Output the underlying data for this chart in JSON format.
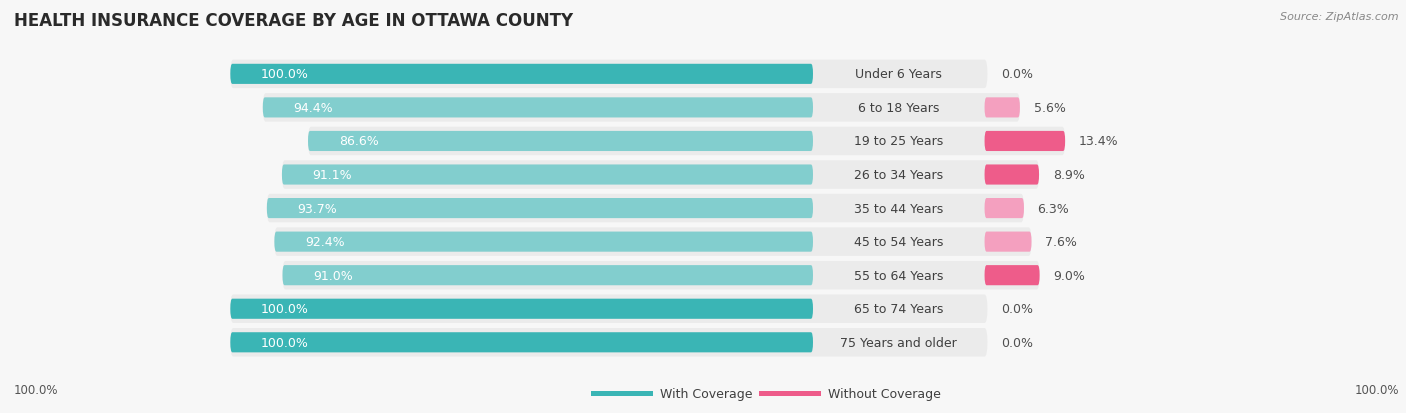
{
  "title": "HEALTH INSURANCE COVERAGE BY AGE IN OTTAWA COUNTY",
  "source": "Source: ZipAtlas.com",
  "categories": [
    "Under 6 Years",
    "6 to 18 Years",
    "19 to 25 Years",
    "26 to 34 Years",
    "35 to 44 Years",
    "45 to 54 Years",
    "55 to 64 Years",
    "65 to 74 Years",
    "75 Years and older"
  ],
  "with_coverage": [
    100.0,
    94.4,
    86.6,
    91.1,
    93.7,
    92.4,
    91.0,
    100.0,
    100.0
  ],
  "without_coverage": [
    0.0,
    5.6,
    13.4,
    8.9,
    6.3,
    7.6,
    9.0,
    0.0,
    0.0
  ],
  "color_with_strong": "#3ab5b5",
  "color_with_light": "#82cece",
  "color_without_strong": "#ee5c8a",
  "color_without_light": "#f4a0bf",
  "row_bg_color": "#ebebeb",
  "background_color": "#f7f7f7",
  "title_fontsize": 12,
  "label_fontsize": 9,
  "legend_fontsize": 9,
  "source_fontsize": 8,
  "axis_label_fontsize": 8.5,
  "x_axis_label_left": "100.0%",
  "x_axis_label_right": "100.0%"
}
